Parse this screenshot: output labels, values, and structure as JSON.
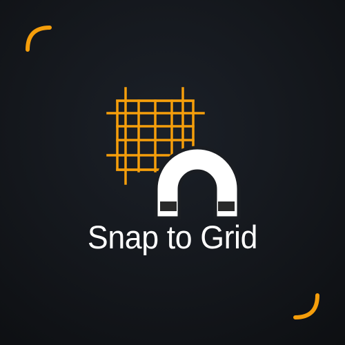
{
  "label": "Snap to Grid",
  "icons": [
    "grid-icon",
    "magnet-icon"
  ],
  "colors": {
    "background": "#14171c",
    "accent": "#f59e0b",
    "text": "#ffffff",
    "magnet_tip": "#2a2a2a"
  }
}
